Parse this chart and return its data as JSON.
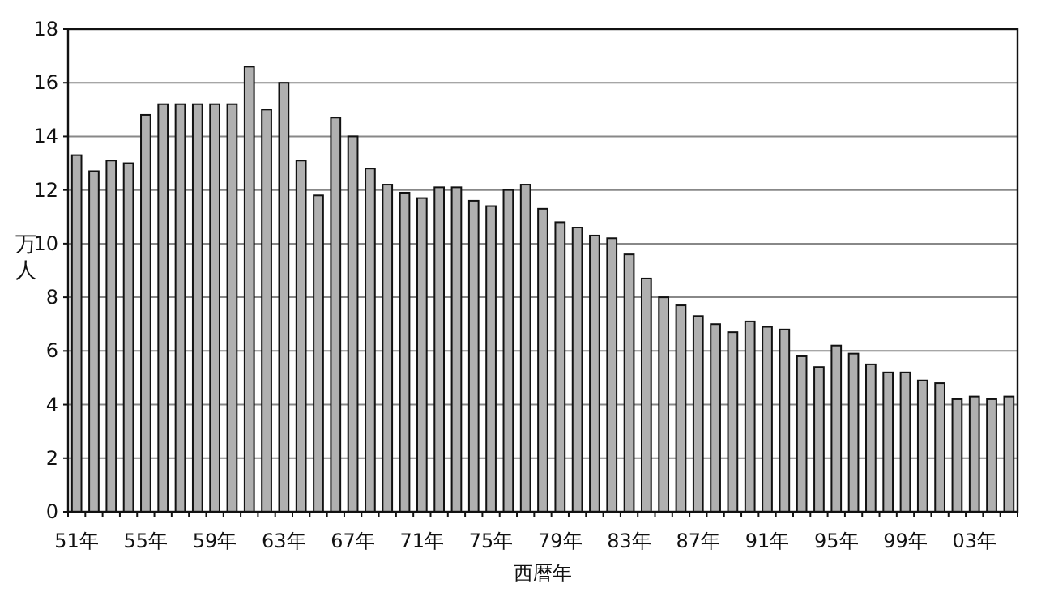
{
  "chart_data": {
    "type": "bar",
    "categories": [
      "51年",
      null,
      null,
      null,
      "55年",
      null,
      null,
      null,
      "59年",
      null,
      null,
      null,
      "63年",
      null,
      null,
      null,
      "67年",
      null,
      null,
      null,
      "71年",
      null,
      null,
      null,
      "75年",
      null,
      null,
      null,
      "79年",
      null,
      null,
      null,
      "83年",
      null,
      null,
      null,
      "87年",
      null,
      null,
      null,
      "91年",
      null,
      null,
      null,
      "95年",
      null,
      null,
      null,
      "99年",
      null,
      null,
      null,
      "03年",
      null,
      null
    ],
    "values": [
      13.3,
      12.7,
      13.1,
      13.0,
      14.8,
      15.2,
      15.2,
      15.2,
      15.2,
      15.2,
      16.6,
      15.0,
      16.0,
      13.1,
      11.8,
      14.7,
      14.0,
      12.8,
      12.2,
      11.9,
      11.7,
      12.1,
      12.1,
      11.6,
      11.4,
      12.0,
      12.2,
      11.3,
      10.8,
      10.6,
      10.3,
      10.2,
      9.6,
      8.7,
      8.0,
      7.7,
      7.3,
      7.0,
      6.7,
      7.1,
      6.9,
      6.8,
      5.8,
      5.4,
      6.2,
      5.9,
      5.5,
      5.2,
      5.2,
      4.9,
      4.8,
      4.2,
      4.3,
      4.2,
      4.3
    ],
    "color": "#b0b0b0",
    "ylim": [
      0,
      18
    ],
    "yticks": [
      0,
      2,
      4,
      6,
      8,
      10,
      12,
      14,
      16,
      18
    ],
    "grid": "y",
    "ylabel": "万人",
    "xlabel": "西暦年"
  }
}
